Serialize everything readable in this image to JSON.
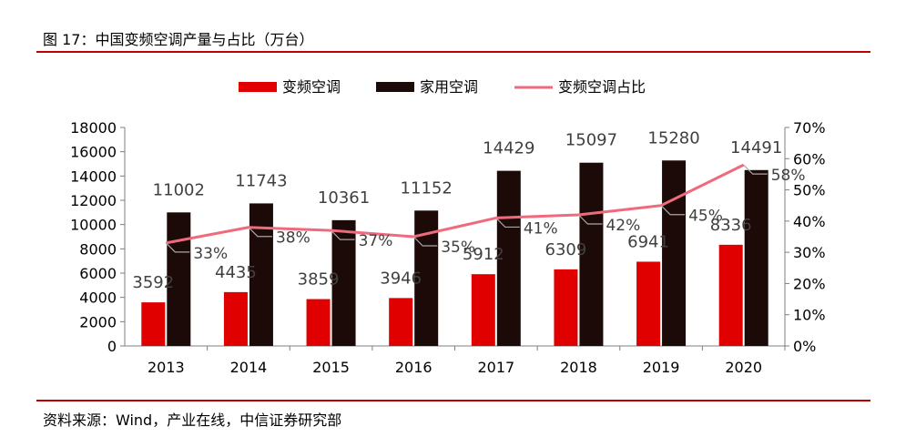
{
  "figure": {
    "caption": "图 17：中国变频空调产量与占比（万台）",
    "source": "资料来源：Wind，产业在线，中信证券研究部"
  },
  "colors": {
    "inverter": "#e00000",
    "household": "#1c0a08",
    "share": "#f06a7d",
    "rule": "#c00000",
    "axis": "#7f7f7f",
    "leader": "#a6a6a6"
  },
  "chart_data": {
    "type": "bar",
    "categories": [
      "2013",
      "2014",
      "2015",
      "2016",
      "2017",
      "2018",
      "2019",
      "2020"
    ],
    "series": [
      {
        "name": "变频空调",
        "type": "bar",
        "axis": "left",
        "values": [
          3592,
          4435,
          3859,
          3946,
          5912,
          6309,
          6941,
          8336
        ]
      },
      {
        "name": "家用空调",
        "type": "bar",
        "axis": "left",
        "values": [
          11002,
          11743,
          10361,
          11152,
          14429,
          15097,
          15280,
          14491
        ]
      },
      {
        "name": "变频空调占比",
        "type": "line",
        "axis": "right",
        "values": [
          33,
          38,
          37,
          35,
          41,
          42,
          45,
          58
        ],
        "labels": [
          "33%",
          "38%",
          "37%",
          "35%",
          "41%",
          "42%",
          "45%",
          "58%"
        ]
      }
    ],
    "left_axis": {
      "ylim": [
        0,
        18000
      ],
      "ticks": [
        "0",
        "2000",
        "4000",
        "6000",
        "8000",
        "10000",
        "12000",
        "14000",
        "16000",
        "18000"
      ]
    },
    "right_axis": {
      "ylim": [
        0,
        70
      ],
      "ticks": [
        "0%",
        "10%",
        "20%",
        "30%",
        "40%",
        "50%",
        "60%",
        "70%"
      ]
    },
    "legend": "top",
    "grid": false
  }
}
